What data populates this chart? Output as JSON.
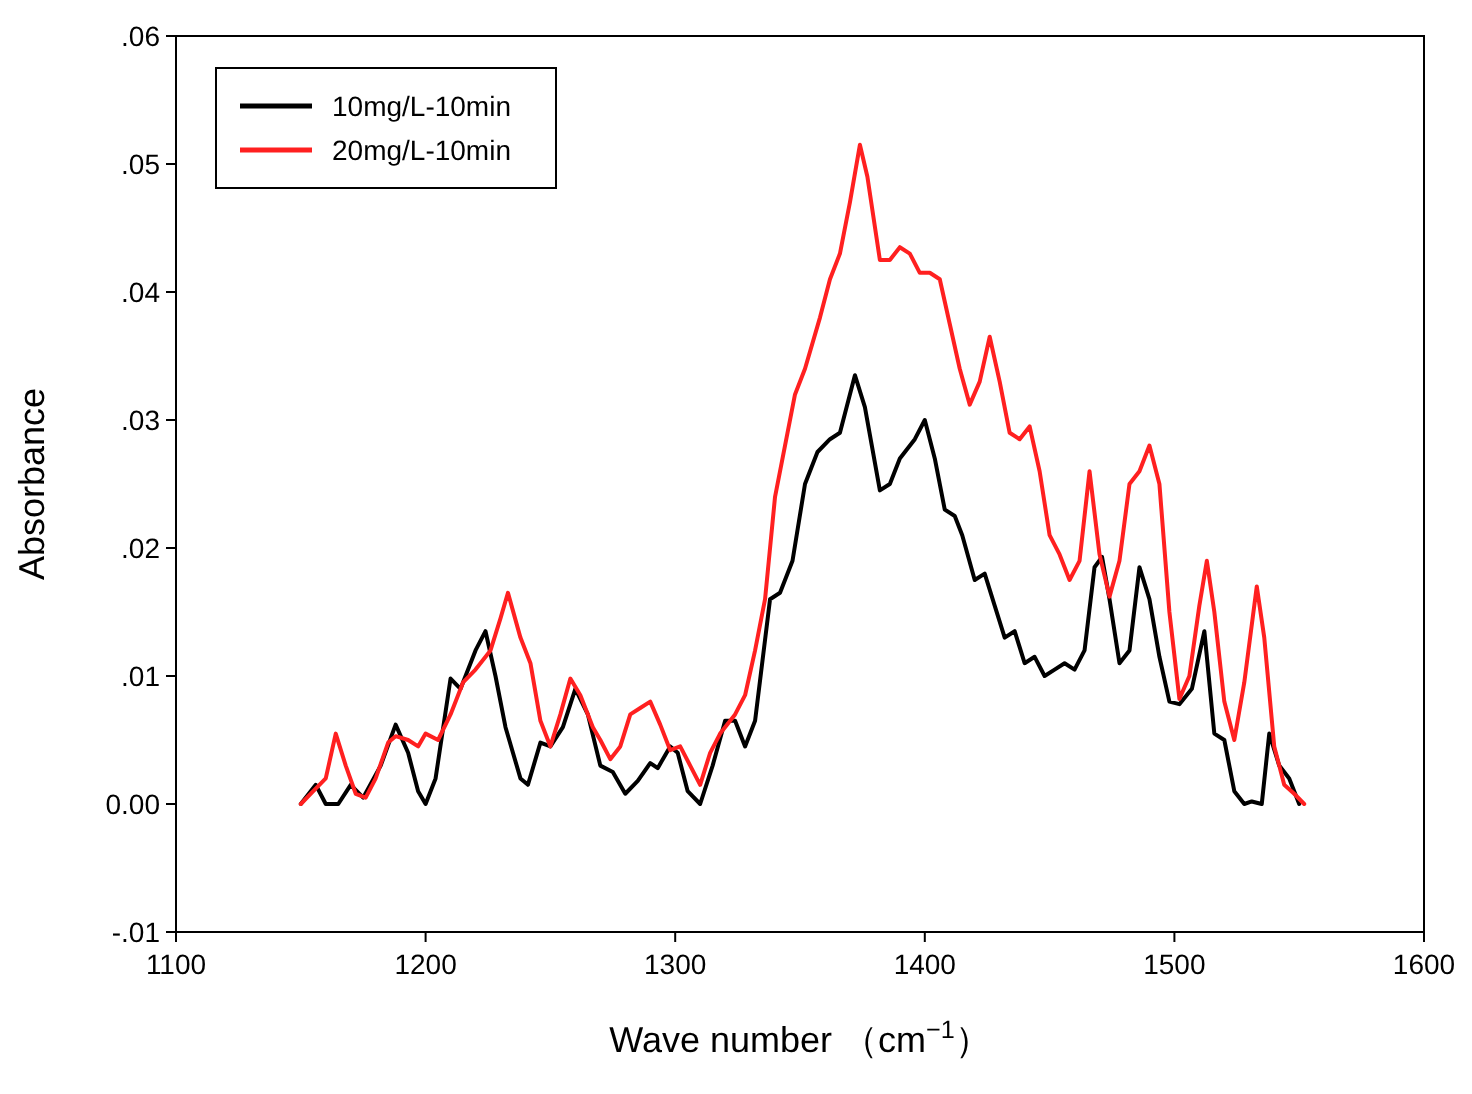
{
  "chart_data": {
    "type": "line",
    "xlabel": "Wave number （cm$^{−1}$）",
    "ylabel": "Absorbance",
    "xlim": [
      1100,
      1600
    ],
    "xticks": [
      1100,
      1200,
      1300,
      1400,
      1500,
      1600
    ],
    "ylim": [
      -0.01,
      0.06
    ],
    "yticks": [
      {
        "value": -0.01,
        "label": "-.01"
      },
      {
        "value": 0,
        "label": "0.00"
      },
      {
        "value": 0.01,
        "label": ".01"
      },
      {
        "value": 0.02,
        "label": ".02"
      },
      {
        "value": 0.03,
        "label": ".03"
      },
      {
        "value": 0.04,
        "label": ".04"
      },
      {
        "value": 0.05,
        "label": ".05"
      },
      {
        "value": 0.06,
        "label": ".06"
      }
    ],
    "legend": "top left",
    "grid": false,
    "marker": "none",
    "line_style": "solid",
    "series": [
      {
        "name": "10mg/L-10min",
        "color": "#000000",
        "x": [
          1150,
          1156,
          1160,
          1165,
          1170,
          1175,
          1182,
          1188,
          1193,
          1197,
          1200,
          1204,
          1210,
          1214,
          1220,
          1224,
          1228,
          1232,
          1238,
          1241,
          1246,
          1250,
          1255,
          1260,
          1265,
          1270,
          1275,
          1280,
          1285,
          1290,
          1293,
          1298,
          1301,
          1305,
          1310,
          1315,
          1320,
          1324,
          1328,
          1332,
          1338,
          1342,
          1347,
          1352,
          1357,
          1362,
          1366,
          1372,
          1376,
          1382,
          1386,
          1390,
          1396,
          1400,
          1404,
          1408,
          1412,
          1415,
          1420,
          1424,
          1428,
          1432,
          1436,
          1440,
          1444,
          1448,
          1452,
          1456,
          1460,
          1464,
          1468,
          1471,
          1474,
          1478,
          1482,
          1486,
          1490,
          1494,
          1498,
          1502,
          1507,
          1512,
          1516,
          1520,
          1524,
          1528,
          1531,
          1535,
          1538,
          1542,
          1546,
          1550
        ],
        "values": [
          0.0,
          0.0015,
          0.0,
          0.0,
          0.0015,
          0.0005,
          0.003,
          0.0062,
          0.004,
          0.001,
          0.0,
          0.002,
          0.0098,
          0.009,
          0.012,
          0.0135,
          0.01,
          0.006,
          0.002,
          0.0015,
          0.0048,
          0.0045,
          0.006,
          0.009,
          0.007,
          0.003,
          0.0025,
          0.0008,
          0.0018,
          0.0032,
          0.0028,
          0.0045,
          0.004,
          0.001,
          0.0,
          0.003,
          0.0065,
          0.0065,
          0.0045,
          0.0065,
          0.016,
          0.0165,
          0.019,
          0.025,
          0.0275,
          0.0285,
          0.029,
          0.0335,
          0.031,
          0.0245,
          0.025,
          0.027,
          0.0285,
          0.03,
          0.027,
          0.023,
          0.0225,
          0.021,
          0.0175,
          0.018,
          0.0155,
          0.013,
          0.0135,
          0.011,
          0.0115,
          0.01,
          0.0105,
          0.011,
          0.0105,
          0.012,
          0.0185,
          0.0193,
          0.016,
          0.011,
          0.012,
          0.0185,
          0.016,
          0.0115,
          0.008,
          0.0078,
          0.009,
          0.0135,
          0.0055,
          0.005,
          0.001,
          0.0,
          0.0002,
          0.0,
          0.0055,
          0.003,
          0.002,
          0.0
        ]
      },
      {
        "name": "20mg/L-10min",
        "color": "#ff2020",
        "x": [
          1150,
          1155,
          1160,
          1164,
          1168,
          1172,
          1176,
          1180,
          1185,
          1188,
          1193,
          1197,
          1200,
          1205,
          1210,
          1215,
          1220,
          1226,
          1230,
          1233,
          1238,
          1242,
          1246,
          1250,
          1254,
          1258,
          1262,
          1267,
          1270,
          1274,
          1278,
          1282,
          1286,
          1290,
          1294,
          1298,
          1302,
          1306,
          1310,
          1314,
          1318,
          1324,
          1328,
          1332,
          1336,
          1340,
          1344,
          1348,
          1352,
          1358,
          1362,
          1366,
          1370,
          1374,
          1377,
          1382,
          1386,
          1390,
          1394,
          1398,
          1402,
          1406,
          1410,
          1414,
          1418,
          1422,
          1426,
          1430,
          1434,
          1438,
          1442,
          1446,
          1450,
          1454,
          1458,
          1462,
          1466,
          1470,
          1474,
          1478,
          1482,
          1486,
          1490,
          1494,
          1498,
          1502,
          1506,
          1510,
          1513,
          1516,
          1520,
          1524,
          1528,
          1533,
          1536,
          1540,
          1544,
          1548,
          1552
        ],
        "values": [
          0.0,
          0.001,
          0.002,
          0.0055,
          0.003,
          0.0008,
          0.0005,
          0.002,
          0.0048,
          0.0053,
          0.005,
          0.0045,
          0.0055,
          0.005,
          0.007,
          0.0095,
          0.0105,
          0.012,
          0.0145,
          0.0165,
          0.013,
          0.011,
          0.0065,
          0.0045,
          0.007,
          0.0098,
          0.0085,
          0.006,
          0.005,
          0.0035,
          0.0045,
          0.007,
          0.0075,
          0.008,
          0.0062,
          0.0042,
          0.0045,
          0.003,
          0.0015,
          0.004,
          0.0055,
          0.007,
          0.0085,
          0.012,
          0.016,
          0.024,
          0.028,
          0.032,
          0.034,
          0.038,
          0.041,
          0.043,
          0.047,
          0.0515,
          0.049,
          0.0425,
          0.0425,
          0.0435,
          0.043,
          0.0415,
          0.0415,
          0.041,
          0.0375,
          0.034,
          0.0312,
          0.033,
          0.0365,
          0.033,
          0.029,
          0.0285,
          0.0295,
          0.026,
          0.021,
          0.0195,
          0.0175,
          0.019,
          0.026,
          0.0195,
          0.0162,
          0.019,
          0.025,
          0.026,
          0.028,
          0.025,
          0.015,
          0.0082,
          0.01,
          0.0155,
          0.019,
          0.015,
          0.008,
          0.005,
          0.0095,
          0.017,
          0.013,
          0.0045,
          0.0015,
          0.0008,
          0.0
        ]
      }
    ]
  }
}
